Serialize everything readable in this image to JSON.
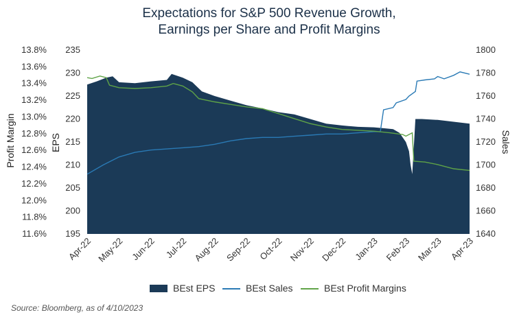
{
  "chart_data": {
    "type": "area",
    "title_lines": [
      "Expectations for S&P 500 Revenue Growth,",
      "Earnings per Share and Profit Margins"
    ],
    "x_ticks": [
      "Apr-22",
      "May-22",
      "Jun-22",
      "Jul-22",
      "Aug-22",
      "Sep-22",
      "Oct-22",
      "Nov-22",
      "Dec-22",
      "Jan-23",
      "Feb-23",
      "Mar-23",
      "Apr-23"
    ],
    "x_range_months": [
      0,
      12
    ],
    "y_left_profit_margin": {
      "label": "Profit Margin",
      "ticks": [
        "13.8%",
        "13.6%",
        "13.4%",
        "13.2%",
        "13.0%",
        "12.8%",
        "12.6%",
        "12.4%",
        "12.2%",
        "12.0%",
        "11.8%",
        "11.6%"
      ],
      "range": [
        11.6,
        13.8
      ]
    },
    "y_left_eps": {
      "label": "EPS",
      "ticks": [
        "235",
        "230",
        "225",
        "220",
        "215",
        "210",
        "205",
        "200",
        "195"
      ],
      "range": [
        195,
        235
      ]
    },
    "y_right_sales": {
      "label": "Sales",
      "ticks": [
        "1800",
        "1780",
        "1760",
        "1740",
        "1720",
        "1700",
        "1680",
        "1660",
        "1640"
      ],
      "range": [
        1640,
        1800
      ]
    },
    "series": [
      {
        "name": "BEst EPS",
        "axis": "eps",
        "kind": "area",
        "color": "#1b3a57",
        "points": [
          [
            0,
            227.5
          ],
          [
            0.3,
            228.2
          ],
          [
            0.6,
            229
          ],
          [
            0.8,
            229.3
          ],
          [
            1,
            228
          ],
          [
            1.5,
            227.8
          ],
          [
            2,
            228.2
          ],
          [
            2.5,
            228.5
          ],
          [
            2.65,
            229.8
          ],
          [
            3,
            229
          ],
          [
            3.3,
            228
          ],
          [
            3.6,
            226
          ],
          [
            4,
            225
          ],
          [
            4.5,
            224
          ],
          [
            5,
            223
          ],
          [
            5.5,
            222.3
          ],
          [
            6,
            221.5
          ],
          [
            6.5,
            221
          ],
          [
            7,
            220
          ],
          [
            7.5,
            219
          ],
          [
            8,
            218.6
          ],
          [
            8.5,
            218.3
          ],
          [
            9,
            218.2
          ],
          [
            9.3,
            218
          ],
          [
            9.6,
            217.8
          ],
          [
            9.8,
            217
          ],
          [
            10.0,
            215
          ],
          [
            10.1,
            213
          ],
          [
            10.15,
            210
          ],
          [
            10.2,
            208
          ],
          [
            10.25,
            214
          ],
          [
            10.3,
            220
          ],
          [
            10.5,
            220
          ],
          [
            11,
            219.8
          ],
          [
            11.5,
            219.4
          ],
          [
            12,
            219
          ]
        ]
      },
      {
        "name": "BEst Sales",
        "axis": "sales",
        "kind": "line",
        "color": "#2a7ab5",
        "points": [
          [
            0,
            1692
          ],
          [
            0.5,
            1700
          ],
          [
            1,
            1707
          ],
          [
            1.5,
            1711
          ],
          [
            2,
            1713
          ],
          [
            2.5,
            1714
          ],
          [
            3,
            1715
          ],
          [
            3.5,
            1716
          ],
          [
            4,
            1718
          ],
          [
            4.5,
            1721
          ],
          [
            5,
            1723
          ],
          [
            5.5,
            1724
          ],
          [
            6,
            1724
          ],
          [
            6.5,
            1725
          ],
          [
            7,
            1726
          ],
          [
            7.5,
            1727
          ],
          [
            8,
            1727
          ],
          [
            8.5,
            1728
          ],
          [
            9,
            1729
          ],
          [
            9.2,
            1729
          ],
          [
            9.3,
            1748
          ],
          [
            9.6,
            1750
          ],
          [
            9.7,
            1754
          ],
          [
            10,
            1757
          ],
          [
            10.1,
            1760
          ],
          [
            10.3,
            1764
          ],
          [
            10.35,
            1773
          ],
          [
            10.6,
            1774
          ],
          [
            10.9,
            1775
          ],
          [
            11,
            1777
          ],
          [
            11.2,
            1775
          ],
          [
            11.5,
            1778
          ],
          [
            11.7,
            1781
          ],
          [
            12,
            1779
          ]
        ]
      },
      {
        "name": "BEst Profit Margins",
        "axis": "margin",
        "kind": "line",
        "color": "#5fa347",
        "points": [
          [
            0,
            13.47
          ],
          [
            0.15,
            13.46
          ],
          [
            0.4,
            13.49
          ],
          [
            0.6,
            13.47
          ],
          [
            0.7,
            13.38
          ],
          [
            1,
            13.35
          ],
          [
            1.5,
            13.34
          ],
          [
            2,
            13.35
          ],
          [
            2.5,
            13.37
          ],
          [
            2.7,
            13.4
          ],
          [
            3,
            13.37
          ],
          [
            3.3,
            13.3
          ],
          [
            3.5,
            13.22
          ],
          [
            4,
            13.18
          ],
          [
            4.5,
            13.15
          ],
          [
            5,
            13.12
          ],
          [
            5.5,
            13.1
          ],
          [
            6,
            13.04
          ],
          [
            6.5,
            12.98
          ],
          [
            7,
            12.92
          ],
          [
            7.5,
            12.88
          ],
          [
            8,
            12.85
          ],
          [
            8.5,
            12.84
          ],
          [
            9,
            12.83
          ],
          [
            9.5,
            12.81
          ],
          [
            9.9,
            12.79
          ],
          [
            10.0,
            12.77
          ],
          [
            10.2,
            12.81
          ],
          [
            10.25,
            12.47
          ],
          [
            10.6,
            12.46
          ],
          [
            11,
            12.43
          ],
          [
            11.5,
            12.38
          ],
          [
            12,
            12.36
          ]
        ]
      }
    ],
    "legend_position": "bottom",
    "source": "Source: Bloomberg, as of 4/10/2023"
  }
}
